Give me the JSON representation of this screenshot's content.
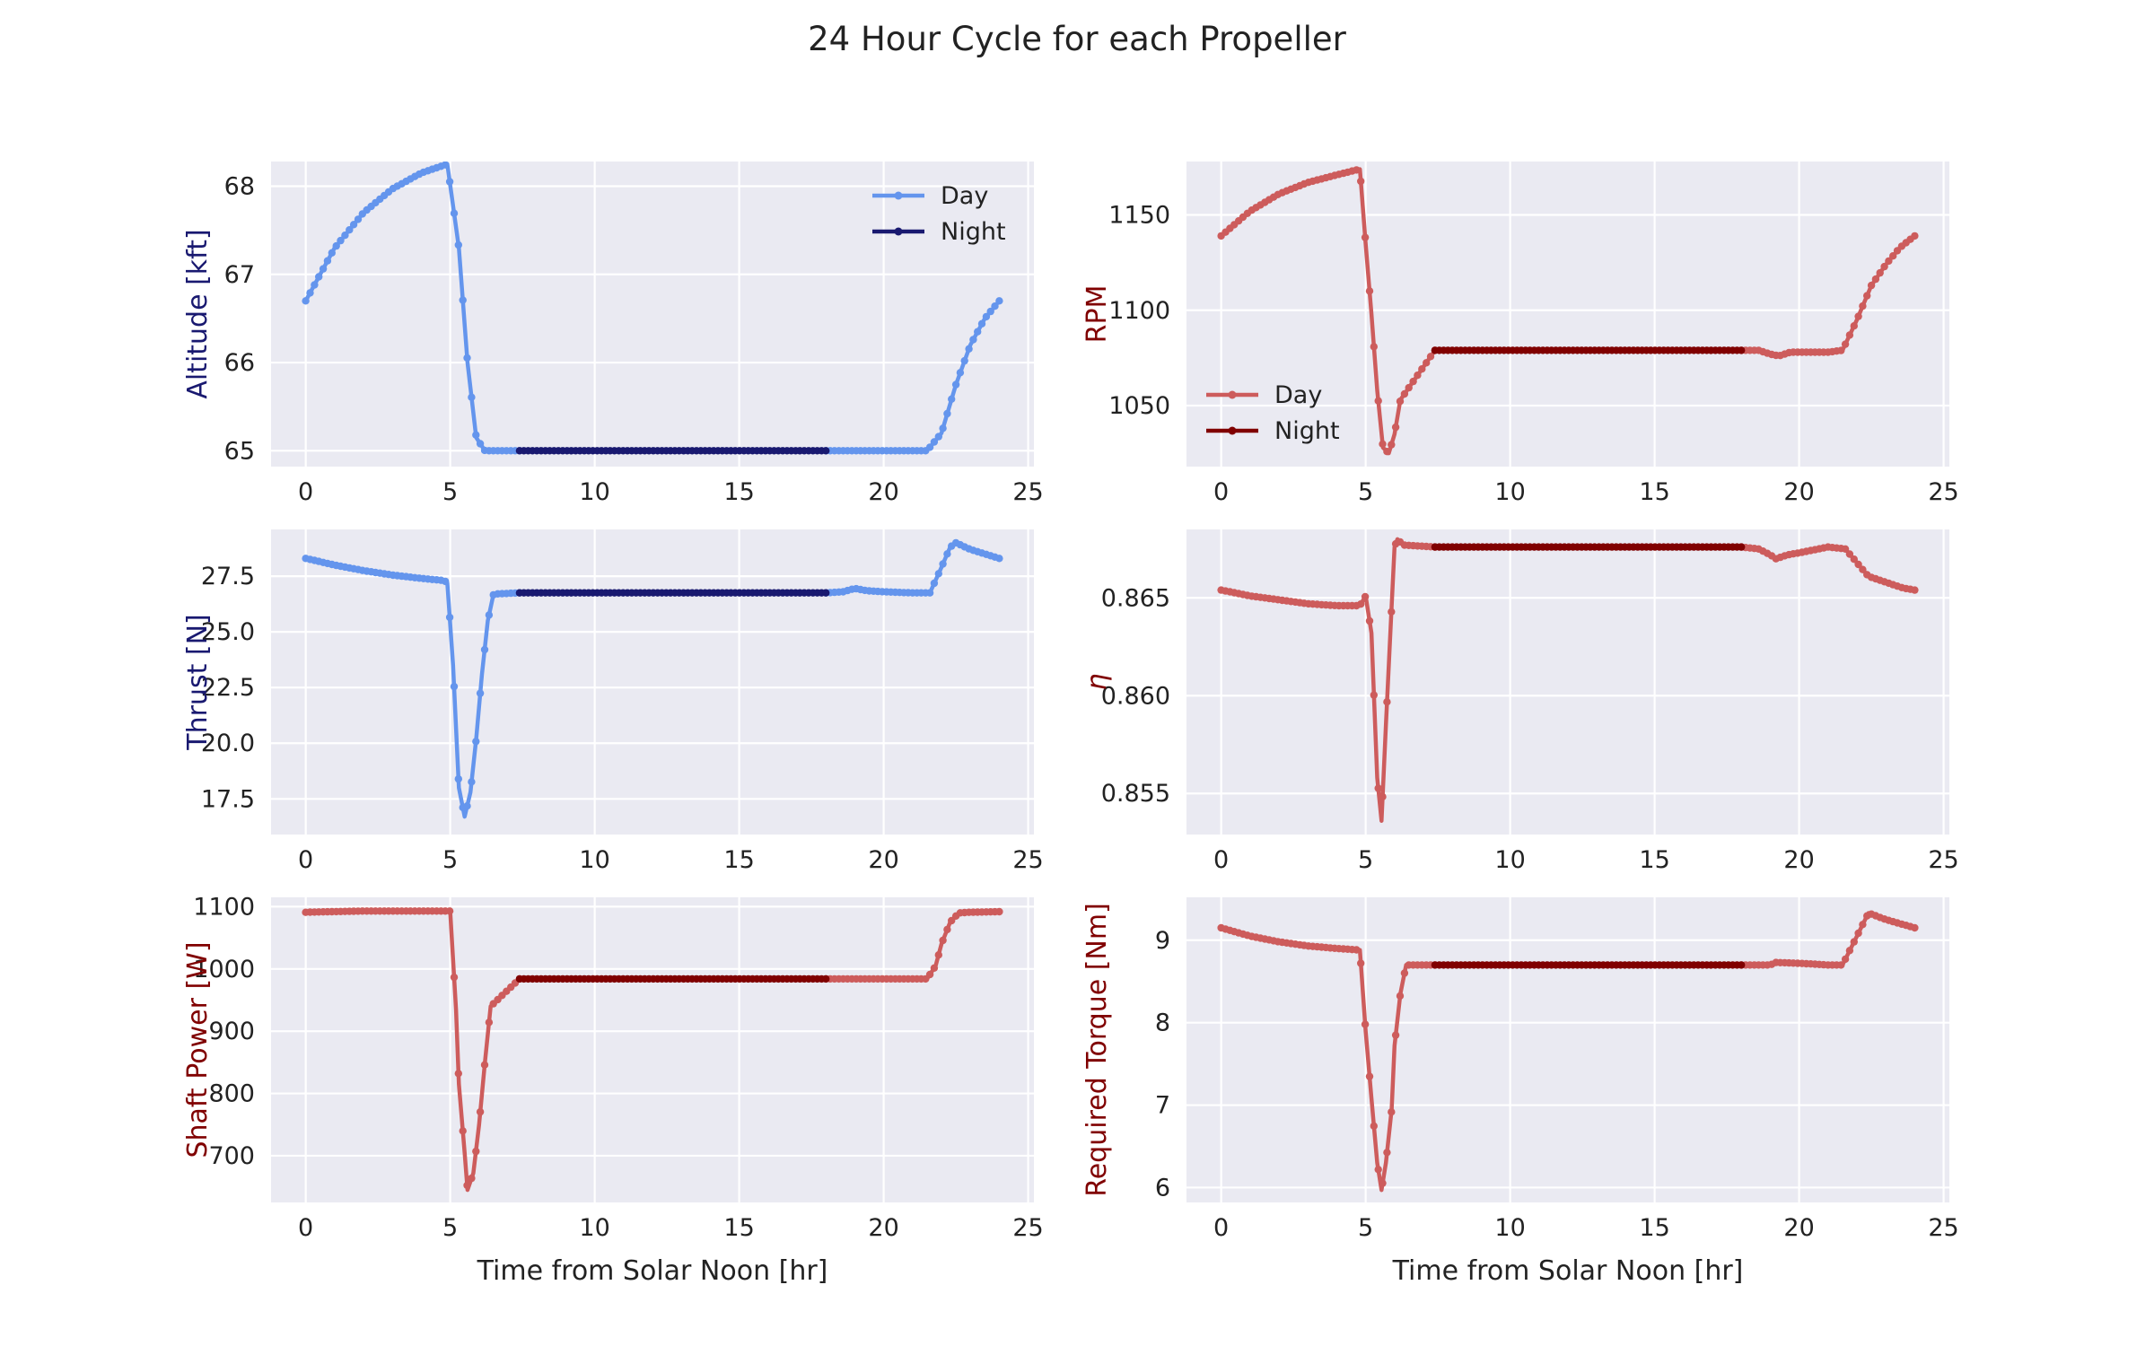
{
  "figure": {
    "title": "24 Hour Cycle for each Propeller"
  },
  "colors": {
    "panel_bg": "#eaeaf2",
    "grid": "#ffffff",
    "blue_day": "#6495ed",
    "blue_night": "#191970",
    "red_day": "#cd5c5c",
    "red_night": "#800000",
    "blue_label": "#191970",
    "red_label": "#800000"
  },
  "chart_data": [
    {
      "type": "line",
      "ylabel": "Altitude [kft]",
      "xlabel": "",
      "xlim": [
        -1.2,
        25.2
      ],
      "ylim": [
        64.82,
        68.28
      ],
      "xticks": [
        "0",
        "5",
        "10",
        "15",
        "20",
        "25"
      ],
      "yticks": [
        "65",
        "66",
        "67",
        "68"
      ],
      "legend": {
        "position": "top-right",
        "entries": [
          "Day",
          "Night"
        ]
      },
      "palette": "blue",
      "day_segments": [
        {
          "x": [
            0,
            1,
            2,
            3,
            4,
            4.9,
            5.3,
            5.6,
            5.9,
            6.2,
            7.4
          ],
          "y": [
            66.7,
            67.3,
            67.7,
            67.97,
            68.15,
            68.25,
            67.3,
            66.0,
            65.15,
            65.0,
            65.0
          ]
        },
        {
          "x": [
            18,
            21.5,
            22,
            22.5,
            23,
            23.5,
            24
          ],
          "y": [
            65.0,
            65.0,
            65.2,
            65.75,
            66.2,
            66.5,
            66.7
          ]
        }
      ],
      "night_segment": {
        "x": [
          7.4,
          18
        ],
        "y": [
          65.0,
          65.0
        ]
      }
    },
    {
      "type": "line",
      "ylabel": "RPM",
      "xlabel": "",
      "xlim": [
        -1.2,
        25.2
      ],
      "ylim": [
        1018,
        1178
      ],
      "xticks": [
        "0",
        "5",
        "10",
        "15",
        "20",
        "25"
      ],
      "yticks": [
        "1050",
        "1100",
        "1150"
      ],
      "legend": {
        "position": "center-left",
        "entries": [
          "Day",
          "Night"
        ]
      },
      "palette": "red",
      "day_segments": [
        {
          "x": [
            0,
            1,
            2,
            3,
            4,
            4.8,
            5.0,
            5.2,
            5.4,
            5.6,
            5.8,
            6.0,
            6.2,
            7.4
          ],
          "y": [
            1139,
            1152,
            1161,
            1167,
            1171,
            1174,
            1135,
            1098,
            1058,
            1028,
            1025,
            1035,
            1053,
            1079
          ]
        },
        {
          "x": [
            18,
            18.6,
            19,
            19.3,
            19.7,
            20,
            21,
            21.5,
            22,
            22.5,
            23,
            23.5,
            24
          ],
          "y": [
            1079,
            1079,
            1077,
            1076,
            1078,
            1078,
            1078,
            1079,
            1095,
            1113,
            1124,
            1133,
            1139
          ]
        }
      ],
      "night_segment": {
        "x": [
          7.4,
          18
        ],
        "y": [
          1079,
          1079
        ]
      }
    },
    {
      "type": "line",
      "ylabel": "Thrust [N]",
      "xlabel": "",
      "xlim": [
        -1.2,
        25.2
      ],
      "ylim": [
        15.9,
        29.6
      ],
      "xticks": [
        "0",
        "5",
        "10",
        "15",
        "20",
        "25"
      ],
      "yticks": [
        "17.5",
        "20.0",
        "22.5",
        "25.0",
        "27.5"
      ],
      "legend": null,
      "palette": "blue",
      "day_segments": [
        {
          "x": [
            0,
            1,
            2,
            3,
            4,
            4.8,
            4.9,
            5.1,
            5.3,
            5.5,
            5.7,
            5.9,
            6.1,
            6.3,
            6.5,
            7.4
          ],
          "y": [
            28.3,
            28.0,
            27.75,
            27.55,
            27.4,
            27.3,
            27.2,
            23.5,
            18.0,
            16.7,
            17.8,
            20.2,
            23.1,
            25.5,
            26.7,
            26.75
          ]
        },
        {
          "x": [
            18,
            18.6,
            19,
            19.4,
            20,
            21,
            21.6,
            22,
            22.3,
            22.5,
            23,
            24
          ],
          "y": [
            26.75,
            26.8,
            26.95,
            26.85,
            26.8,
            26.75,
            26.75,
            27.9,
            28.8,
            29.0,
            28.7,
            28.3
          ]
        }
      ],
      "night_segment": {
        "x": [
          7.4,
          18
        ],
        "y": [
          26.75,
          26.75
        ]
      }
    },
    {
      "type": "line",
      "ylabel": "η",
      "xlabel": "",
      "xlim": [
        -1.2,
        25.2
      ],
      "ylim": [
        0.8529,
        0.8685
      ],
      "xticks": [
        "0",
        "5",
        "10",
        "15",
        "20",
        "25"
      ],
      "yticks": [
        "0.855",
        "0.860",
        "0.865"
      ],
      "legend": null,
      "palette": "red",
      "day_segments": [
        {
          "x": [
            0,
            1,
            2,
            3,
            4,
            4.8,
            5.0,
            5.2,
            5.4,
            5.55,
            5.7,
            5.9,
            6.0,
            6.1,
            6.3,
            7.4
          ],
          "y": [
            0.8654,
            0.8651,
            0.8649,
            0.8647,
            0.8646,
            0.8646,
            0.8651,
            0.8632,
            0.8558,
            0.8536,
            0.8585,
            0.8646,
            0.8676,
            0.868,
            0.8677,
            0.8676
          ]
        },
        {
          "x": [
            18,
            18.6,
            19,
            19.2,
            19.6,
            20,
            21,
            21.6,
            22,
            22.4,
            23,
            23.6,
            24
          ],
          "y": [
            0.8676,
            0.8675,
            0.8672,
            0.867,
            0.8672,
            0.8673,
            0.8676,
            0.8675,
            0.8668,
            0.8661,
            0.8658,
            0.8655,
            0.8654
          ]
        }
      ],
      "night_segment": {
        "x": [
          7.4,
          18
        ],
        "y": [
          0.8676,
          0.8676
        ]
      }
    },
    {
      "type": "line",
      "ylabel": "Shaft Power [W]",
      "xlabel": "Time from Solar Noon [hr]",
      "xlim": [
        -1.2,
        25.2
      ],
      "ylim": [
        625,
        1115
      ],
      "xticks": [
        "0",
        "5",
        "10",
        "15",
        "20",
        "25"
      ],
      "yticks": [
        "700",
        "800",
        "900",
        "1000",
        "1100"
      ],
      "legend": null,
      "palette": "red",
      "day_segments": [
        {
          "x": [
            0,
            1,
            2,
            3,
            4,
            4.9,
            5.0,
            5.2,
            5.3,
            5.5,
            5.6,
            5.8,
            6.0,
            6.2,
            6.4,
            7.4
          ],
          "y": [
            1091,
            1092,
            1093,
            1093,
            1093,
            1093,
            1093,
            935,
            815,
            705,
            645,
            672,
            750,
            850,
            940,
            984
          ]
        },
        {
          "x": [
            18,
            19,
            20,
            21,
            21.5,
            21.8,
            22,
            22.3,
            22.6,
            23,
            24
          ],
          "y": [
            984,
            984,
            984,
            984,
            984,
            1005,
            1040,
            1075,
            1090,
            1091,
            1092
          ]
        }
      ],
      "night_segment": {
        "x": [
          7.4,
          18
        ],
        "y": [
          984,
          984
        ]
      }
    },
    {
      "type": "line",
      "ylabel": "Required Torque [Nm]",
      "xlabel": "Time from Solar Noon [hr]",
      "xlim": [
        -1.2,
        25.2
      ],
      "ylim": [
        5.82,
        9.52
      ],
      "xticks": [
        "0",
        "5",
        "10",
        "15",
        "20",
        "25"
      ],
      "yticks": [
        "6",
        "7",
        "8",
        "9"
      ],
      "legend": null,
      "palette": "red",
      "day_segments": [
        {
          "x": [
            0,
            1,
            2,
            3,
            4,
            4.8,
            5.0,
            5.2,
            5.4,
            5.55,
            5.7,
            5.9,
            6.0,
            6.2,
            6.4,
            7.4
          ],
          "y": [
            9.15,
            9.05,
            8.98,
            8.93,
            8.9,
            8.88,
            7.9,
            7.08,
            6.3,
            5.97,
            6.3,
            6.95,
            7.72,
            8.35,
            8.7,
            8.7
          ]
        },
        {
          "x": [
            18,
            19,
            19.2,
            20,
            21,
            21.5,
            22,
            22.4,
            23,
            24
          ],
          "y": [
            8.7,
            8.7,
            8.73,
            8.72,
            8.7,
            8.7,
            9.05,
            9.33,
            9.25,
            9.15
          ]
        }
      ],
      "night_segment": {
        "x": [
          7.4,
          18
        ],
        "y": [
          8.7,
          8.7
        ]
      }
    }
  ]
}
